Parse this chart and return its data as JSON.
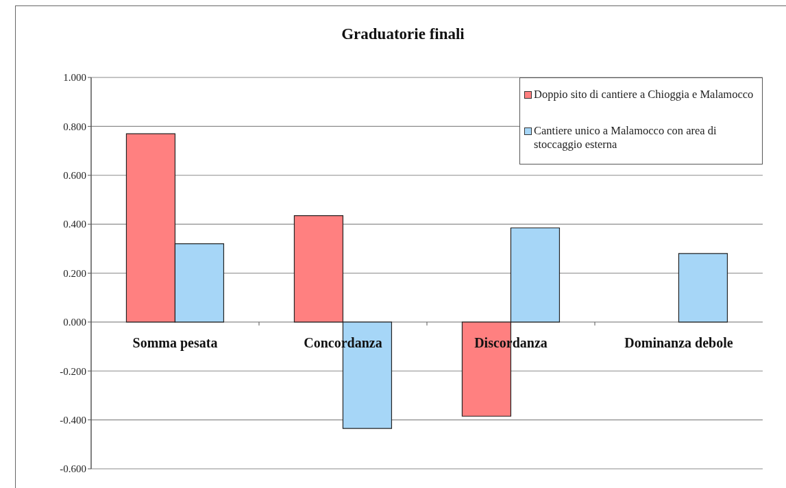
{
  "chart_data": {
    "type": "bar",
    "title": "Graduatorie finali",
    "categories": [
      "Somma pesata",
      "Concordanza",
      "Discordanza",
      "Dominanza debole"
    ],
    "series": [
      {
        "name": "Doppio sito di cantiere a Chioggia e Malamocco",
        "color": "#ff8080",
        "values": [
          0.77,
          0.435,
          -0.385,
          0
        ]
      },
      {
        "name": "Cantiere unico a Malamocco con area di stoccaggio esterna",
        "color": "#a6d6f7",
        "values": [
          0.32,
          -0.435,
          0.385,
          0.28
        ]
      }
    ],
    "ylim": [
      -0.6,
      1.0
    ],
    "yticks": [
      {
        "value": -0.6,
        "label": "-0.600"
      },
      {
        "value": -0.4,
        "label": "-0.400"
      },
      {
        "value": -0.2,
        "label": "-0.200"
      },
      {
        "value": 0,
        "label": "0.000"
      },
      {
        "value": 0.2,
        "label": "0.200"
      },
      {
        "value": 0.4,
        "label": "0.400"
      },
      {
        "value": 0.6,
        "label": "0.600"
      },
      {
        "value": 0.8,
        "label": "0.800"
      },
      {
        "value": 1.0,
        "label": "1.000"
      }
    ],
    "grid": "y",
    "legend": "top right"
  }
}
